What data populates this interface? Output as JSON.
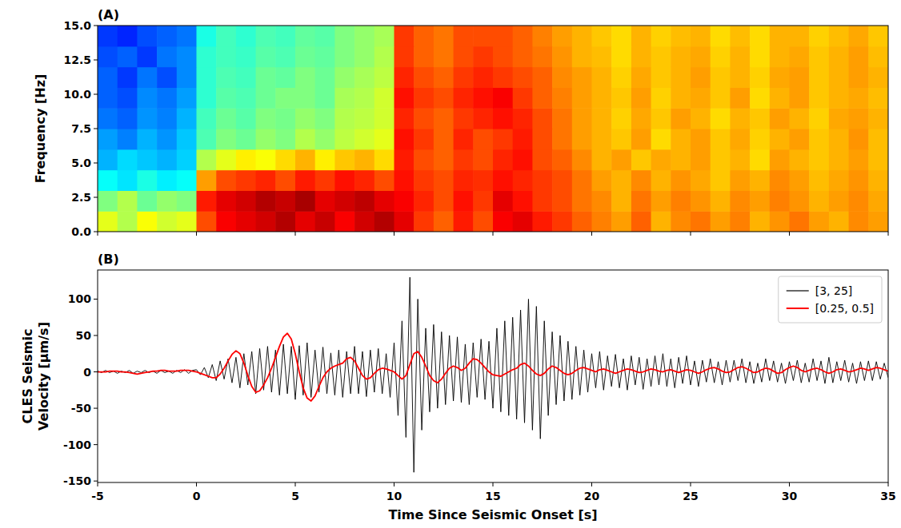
{
  "chart_data": [
    {
      "type": "heatmap",
      "title": "(A)",
      "ylabel": "Frequency [Hz]",
      "x_bins": [
        -5,
        -4,
        -3,
        -2,
        -1,
        0,
        1,
        2,
        3,
        4,
        5,
        6,
        7,
        8,
        9,
        10,
        11,
        12,
        13,
        14,
        15,
        16,
        17,
        18,
        19,
        20,
        21,
        22,
        23,
        24,
        25,
        26,
        27,
        28,
        29,
        30,
        31,
        32,
        33,
        34,
        35
      ],
      "y_bins": [
        0,
        1.5,
        3,
        4.5,
        6,
        7.5,
        9,
        10.5,
        12,
        13.5,
        15
      ],
      "cells": [
        [
          0.6,
          0.55,
          0.62,
          0.58,
          0.6,
          0.8,
          0.88,
          0.9,
          0.92,
          0.95,
          0.9,
          0.93,
          0.88,
          0.92,
          0.95,
          0.9,
          0.82,
          0.78,
          0.85,
          0.8,
          0.88,
          0.9,
          0.85,
          0.82,
          0.78,
          0.75,
          0.72,
          0.78,
          0.7,
          0.74,
          0.76,
          0.72,
          0.75,
          0.7,
          0.73,
          0.76,
          0.72,
          0.7,
          0.74,
          0.72
        ],
        [
          0.5,
          0.55,
          0.48,
          0.52,
          0.5,
          0.85,
          0.9,
          0.92,
          0.95,
          0.93,
          0.96,
          0.9,
          0.92,
          0.94,
          0.9,
          0.88,
          0.84,
          0.8,
          0.86,
          0.82,
          0.9,
          0.86,
          0.82,
          0.8,
          0.76,
          0.74,
          0.7,
          0.76,
          0.72,
          0.75,
          0.73,
          0.7,
          0.74,
          0.72,
          0.75,
          0.73,
          0.7,
          0.72,
          0.74,
          0.71
        ],
        [
          0.38,
          0.35,
          0.4,
          0.36,
          0.38,
          0.72,
          0.8,
          0.82,
          0.84,
          0.8,
          0.85,
          0.82,
          0.86,
          0.84,
          0.8,
          0.86,
          0.82,
          0.8,
          0.84,
          0.83,
          0.86,
          0.84,
          0.82,
          0.8,
          0.76,
          0.72,
          0.7,
          0.74,
          0.7,
          0.73,
          0.71,
          0.68,
          0.72,
          0.7,
          0.74,
          0.72,
          0.69,
          0.71,
          0.73,
          0.7
        ],
        [
          0.3,
          0.34,
          0.32,
          0.3,
          0.33,
          0.55,
          0.6,
          0.64,
          0.62,
          0.66,
          0.7,
          0.64,
          0.68,
          0.7,
          0.66,
          0.85,
          0.8,
          0.78,
          0.82,
          0.8,
          0.84,
          0.86,
          0.8,
          0.78,
          0.74,
          0.7,
          0.72,
          0.68,
          0.71,
          0.7,
          0.72,
          0.68,
          0.7,
          0.66,
          0.72,
          0.7,
          0.68,
          0.7,
          0.72,
          0.69
        ],
        [
          0.28,
          0.25,
          0.3,
          0.27,
          0.32,
          0.45,
          0.5,
          0.48,
          0.52,
          0.5,
          0.55,
          0.52,
          0.56,
          0.58,
          0.6,
          0.86,
          0.82,
          0.78,
          0.84,
          0.8,
          0.82,
          0.85,
          0.8,
          0.76,
          0.72,
          0.7,
          0.68,
          0.72,
          0.66,
          0.7,
          0.72,
          0.68,
          0.71,
          0.67,
          0.7,
          0.72,
          0.68,
          0.7,
          0.73,
          0.69
        ],
        [
          0.24,
          0.22,
          0.27,
          0.25,
          0.3,
          0.44,
          0.48,
          0.46,
          0.5,
          0.49,
          0.52,
          0.5,
          0.55,
          0.56,
          0.58,
          0.84,
          0.8,
          0.78,
          0.82,
          0.84,
          0.86,
          0.84,
          0.8,
          0.76,
          0.72,
          0.7,
          0.67,
          0.71,
          0.68,
          0.72,
          0.7,
          0.66,
          0.7,
          0.68,
          0.72,
          0.7,
          0.67,
          0.71,
          0.72,
          0.7
        ],
        [
          0.22,
          0.2,
          0.26,
          0.24,
          0.28,
          0.42,
          0.46,
          0.45,
          0.48,
          0.5,
          0.5,
          0.48,
          0.54,
          0.55,
          0.58,
          0.86,
          0.82,
          0.8,
          0.84,
          0.86,
          0.88,
          0.82,
          0.78,
          0.75,
          0.72,
          0.7,
          0.68,
          0.72,
          0.67,
          0.7,
          0.71,
          0.68,
          0.72,
          0.66,
          0.7,
          0.72,
          0.68,
          0.7,
          0.71,
          0.69
        ],
        [
          0.22,
          0.18,
          0.24,
          0.2,
          0.26,
          0.42,
          0.45,
          0.44,
          0.48,
          0.47,
          0.5,
          0.48,
          0.52,
          0.54,
          0.56,
          0.84,
          0.8,
          0.78,
          0.82,
          0.84,
          0.82,
          0.8,
          0.78,
          0.74,
          0.72,
          0.7,
          0.67,
          0.71,
          0.68,
          0.7,
          0.72,
          0.68,
          0.7,
          0.67,
          0.71,
          0.72,
          0.68,
          0.7,
          0.72,
          0.7
        ],
        [
          0.2,
          0.22,
          0.18,
          0.24,
          0.26,
          0.42,
          0.44,
          0.43,
          0.46,
          0.45,
          0.48,
          0.47,
          0.5,
          0.52,
          0.55,
          0.82,
          0.78,
          0.76,
          0.8,
          0.82,
          0.8,
          0.78,
          0.76,
          0.73,
          0.7,
          0.69,
          0.66,
          0.7,
          0.68,
          0.7,
          0.71,
          0.67,
          0.7,
          0.66,
          0.7,
          0.71,
          0.68,
          0.7,
          0.72,
          0.69
        ],
        [
          0.18,
          0.16,
          0.2,
          0.22,
          0.24,
          0.4,
          0.44,
          0.42,
          0.45,
          0.44,
          0.47,
          0.46,
          0.5,
          0.52,
          0.54,
          0.82,
          0.78,
          0.76,
          0.8,
          0.8,
          0.8,
          0.78,
          0.75,
          0.72,
          0.7,
          0.68,
          0.66,
          0.7,
          0.67,
          0.69,
          0.7,
          0.66,
          0.69,
          0.66,
          0.7,
          0.7,
          0.67,
          0.69,
          0.71,
          0.68
        ]
      ],
      "clim": [
        0,
        1
      ],
      "xlim": [
        -5,
        35
      ],
      "ylim": [
        0,
        15
      ],
      "xticks": [
        -5,
        0,
        5,
        10,
        15,
        20,
        25,
        30,
        35
      ],
      "yticks": [
        {
          "value": 0,
          "label": "0.0"
        },
        {
          "value": 2.5,
          "label": "2.5"
        },
        {
          "value": 5,
          "label": "5.0"
        },
        {
          "value": 7.5,
          "label": "7.5"
        },
        {
          "value": 10,
          "label": "10.0"
        },
        {
          "value": 12.5,
          "label": "12.5"
        },
        {
          "value": 15,
          "label": "15.0"
        }
      ],
      "tick_labels": "y"
    },
    {
      "type": "line",
      "title": "(B)",
      "xlabel": "Time Since Seismic Onset [s]",
      "ylabel": "CLES Seismic\nVelocity [μm/s]",
      "x": [
        -5,
        -4.8,
        -4.6,
        -4.4,
        -4.2,
        -4,
        -3.8,
        -3.6,
        -3.4,
        -3.2,
        -3,
        -2.8,
        -2.6,
        -2.4,
        -2.2,
        -2,
        -1.8,
        -1.6,
        -1.4,
        -1.2,
        -1,
        -0.8,
        -0.6,
        -0.4,
        -0.2,
        0,
        0.2,
        0.4,
        0.6,
        0.8,
        1,
        1.2,
        1.4,
        1.6,
        1.8,
        2,
        2.2,
        2.4,
        2.6,
        2.8,
        3,
        3.2,
        3.4,
        3.6,
        3.8,
        4,
        4.2,
        4.4,
        4.6,
        4.8,
        5,
        5.2,
        5.4,
        5.6,
        5.8,
        6,
        6.2,
        6.4,
        6.6,
        6.8,
        7,
        7.2,
        7.4,
        7.6,
        7.8,
        8,
        8.2,
        8.4,
        8.6,
        8.8,
        9,
        9.2,
        9.4,
        9.6,
        9.8,
        10,
        10.2,
        10.4,
        10.6,
        10.8,
        11,
        11.2,
        11.4,
        11.6,
        11.8,
        12,
        12.2,
        12.4,
        12.6,
        12.8,
        13,
        13.2,
        13.4,
        13.6,
        13.8,
        14,
        14.2,
        14.4,
        14.6,
        14.8,
        15,
        15.2,
        15.4,
        15.6,
        15.8,
        16,
        16.2,
        16.4,
        16.6,
        16.8,
        17,
        17.2,
        17.4,
        17.6,
        17.8,
        18,
        18.2,
        18.4,
        18.6,
        18.8,
        19,
        19.2,
        19.4,
        19.6,
        19.8,
        20,
        20.2,
        20.4,
        20.6,
        20.8,
        21,
        21.2,
        21.4,
        21.6,
        21.8,
        22,
        22.2,
        22.4,
        22.6,
        22.8,
        23,
        23.2,
        23.4,
        23.6,
        23.8,
        24,
        24.2,
        24.4,
        24.6,
        24.8,
        25,
        25.2,
        25.4,
        25.6,
        25.8,
        26,
        26.2,
        26.4,
        26.6,
        26.8,
        27,
        27.2,
        27.4,
        27.6,
        27.8,
        28,
        28.2,
        28.4,
        28.6,
        28.8,
        29,
        29.2,
        29.4,
        29.6,
        29.8,
        30,
        30.2,
        30.4,
        30.6,
        30.8,
        31,
        31.2,
        31.4,
        31.6,
        31.8,
        32,
        32.2,
        32.4,
        32.6,
        32.8,
        33,
        33.2,
        33.4,
        33.6,
        33.8,
        34,
        34.2,
        34.4,
        34.6,
        34.8,
        35
      ],
      "series": [
        {
          "name": "[3, 25]",
          "color": "#000000",
          "values": [
            1,
            -1,
            2,
            -1,
            1,
            -2,
            1,
            -1,
            2,
            -2,
            1,
            -1,
            2,
            -1,
            1,
            -2,
            2,
            -1,
            1,
            -2,
            2,
            -1,
            3,
            -2,
            2,
            3,
            -4,
            6,
            -8,
            10,
            -12,
            15,
            -10,
            18,
            -15,
            20,
            -22,
            25,
            -18,
            28,
            -30,
            32,
            -25,
            35,
            -28,
            30,
            -32,
            38,
            -30,
            35,
            -38,
            36,
            -32,
            40,
            -35,
            30,
            -28,
            34,
            -30,
            26,
            -32,
            30,
            -35,
            28,
            -30,
            35,
            -30,
            28,
            -34,
            30,
            -28,
            32,
            -30,
            25,
            -35,
            40,
            -60,
            70,
            -90,
            130,
            -138,
            100,
            -80,
            60,
            -55,
            65,
            -50,
            55,
            -45,
            50,
            -40,
            48,
            -42,
            38,
            -45,
            40,
            -35,
            45,
            -38,
            42,
            -50,
            60,
            -55,
            70,
            -60,
            75,
            -65,
            85,
            -70,
            100,
            -80,
            90,
            -92,
            70,
            -60,
            55,
            -45,
            50,
            -40,
            42,
            -38,
            35,
            -32,
            30,
            -28,
            25,
            -22,
            28,
            -25,
            22,
            -20,
            24,
            -22,
            18,
            -25,
            22,
            -18,
            20,
            -24,
            18,
            -20,
            22,
            -18,
            25,
            -20,
            18,
            -22,
            20,
            -16,
            22,
            -18,
            15,
            -20,
            16,
            -14,
            18,
            -15,
            14,
            -18,
            16,
            -14,
            16,
            -12,
            18,
            -15,
            14,
            -16,
            12,
            -14,
            18,
            -12,
            15,
            -14,
            12,
            -16,
            14,
            -12,
            16,
            -15,
            12,
            -14,
            18,
            -12,
            15,
            -16,
            20,
            -15,
            14,
            -12,
            16,
            -14,
            12,
            -16,
            14,
            -12,
            15,
            -12,
            14,
            -10,
            12,
            -8
          ]
        },
        {
          "name": "[0.25, 0.5]",
          "color": "#ff0000",
          "values": [
            0,
            0,
            0,
            1,
            1,
            1,
            0,
            0,
            -1,
            -2,
            -3,
            -2,
            -1,
            0,
            1,
            1,
            2,
            2,
            1,
            1,
            1,
            2,
            2,
            2,
            1,
            0,
            -2,
            -4,
            -6,
            -8,
            -8,
            -3,
            5,
            15,
            24,
            29,
            25,
            12,
            -5,
            -20,
            -28,
            -26,
            -18,
            -8,
            5,
            20,
            35,
            48,
            53,
            45,
            25,
            0,
            -22,
            -36,
            -40,
            -33,
            -20,
            -8,
            0,
            5,
            8,
            10,
            12,
            18,
            20,
            15,
            5,
            -5,
            -10,
            -8,
            -2,
            3,
            5,
            4,
            2,
            0,
            -5,
            -10,
            -5,
            10,
            25,
            28,
            20,
            8,
            -5,
            -12,
            -15,
            -10,
            -2,
            5,
            8,
            6,
            2,
            5,
            12,
            18,
            17,
            12,
            6,
            0,
            -4,
            -5,
            -6,
            -3,
            0,
            3,
            5,
            10,
            12,
            8,
            2,
            -3,
            -5,
            -2,
            4,
            8,
            6,
            2,
            -2,
            -4,
            -2,
            2,
            5,
            6,
            4,
            2,
            0,
            3,
            4,
            2,
            0,
            -2,
            0,
            2,
            4,
            3,
            1,
            -1,
            0,
            2,
            4,
            3,
            1,
            0,
            2,
            3,
            1,
            -1,
            1,
            3,
            2,
            0,
            -2,
            0,
            3,
            5,
            6,
            4,
            1,
            -1,
            0,
            3,
            6,
            7,
            5,
            2,
            -1,
            0,
            3,
            5,
            4,
            1,
            -2,
            -1,
            3,
            6,
            8,
            6,
            2,
            0,
            2,
            4,
            5,
            3,
            0,
            -2,
            0,
            3,
            4,
            2,
            0,
            1,
            3,
            5,
            4,
            2,
            4,
            6,
            5,
            3,
            1
          ]
        }
      ],
      "legend": "upper right",
      "xlim": [
        -5,
        35
      ],
      "ylim": [
        -152,
        140
      ],
      "xticks": [
        -5,
        0,
        5,
        10,
        15,
        20,
        25,
        30,
        35
      ],
      "yticks": [
        -150,
        -100,
        -50,
        0,
        50,
        100
      ]
    }
  ]
}
